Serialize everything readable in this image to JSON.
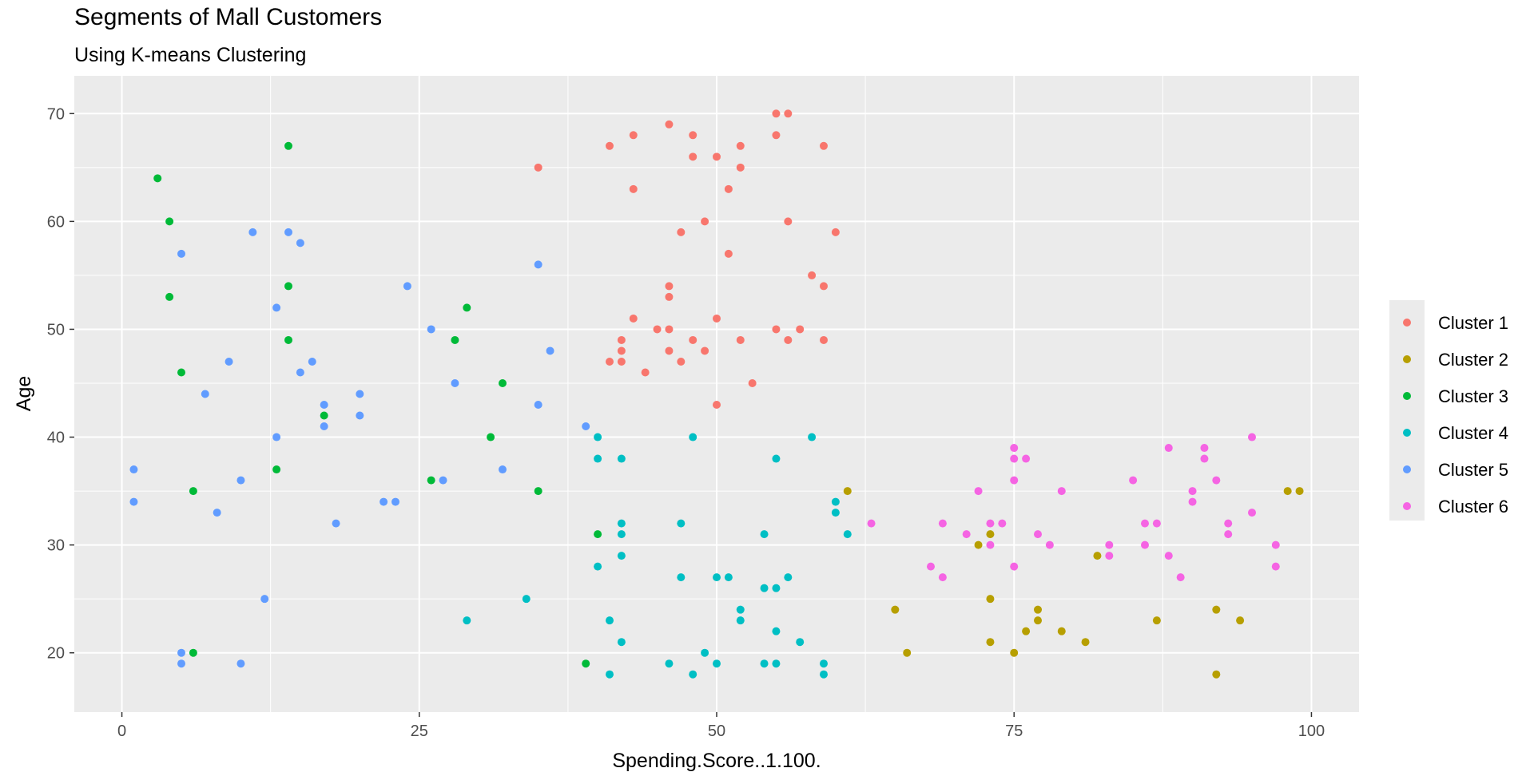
{
  "chart_data": {
    "type": "scatter",
    "title": "Segments of Mall Customers",
    "subtitle": "Using K-means Clustering",
    "xlabel": "Spending.Score..1.100.",
    "ylabel": "Age",
    "xlim": [
      -4,
      104
    ],
    "ylim": [
      14.5,
      73.5
    ],
    "xticks": [
      0,
      25,
      50,
      75,
      100
    ],
    "yticks": [
      20,
      30,
      40,
      50,
      60,
      70
    ],
    "grid": true,
    "legend_position": "right",
    "series": [
      {
        "name": "Cluster 1",
        "color": "#F8766D",
        "points": [
          [
            35,
            65
          ],
          [
            41,
            67
          ],
          [
            43,
            68
          ],
          [
            43,
            63
          ],
          [
            46,
            69
          ],
          [
            48,
            68
          ],
          [
            48,
            66
          ],
          [
            50,
            66
          ],
          [
            52,
            67
          ],
          [
            51,
            63
          ],
          [
            52,
            65
          ],
          [
            55,
            70
          ],
          [
            56,
            70
          ],
          [
            55,
            68
          ],
          [
            59,
            67
          ],
          [
            47,
            59
          ],
          [
            49,
            60
          ],
          [
            51,
            57
          ],
          [
            56,
            60
          ],
          [
            60,
            59
          ],
          [
            58,
            55
          ],
          [
            59,
            54
          ],
          [
            46,
            54
          ],
          [
            46,
            53
          ],
          [
            42,
            49
          ],
          [
            42,
            48
          ],
          [
            43,
            51
          ],
          [
            45,
            50
          ],
          [
            46,
            50
          ],
          [
            46,
            48
          ],
          [
            48,
            49
          ],
          [
            49,
            48
          ],
          [
            50,
            51
          ],
          [
            52,
            49
          ],
          [
            55,
            50
          ],
          [
            56,
            49
          ],
          [
            57,
            50
          ],
          [
            59,
            49
          ],
          [
            41,
            47
          ],
          [
            42,
            47
          ],
          [
            44,
            46
          ],
          [
            47,
            47
          ],
          [
            53,
            45
          ],
          [
            50,
            43
          ]
        ]
      },
      {
        "name": "Cluster 2",
        "color": "#B79F00",
        "points": [
          [
            61,
            35
          ],
          [
            72,
            30
          ],
          [
            73,
            31
          ],
          [
            82,
            29
          ],
          [
            73,
            25
          ],
          [
            65,
            24
          ],
          [
            77,
            24
          ],
          [
            92,
            24
          ],
          [
            77,
            23
          ],
          [
            87,
            23
          ],
          [
            94,
            23
          ],
          [
            79,
            22
          ],
          [
            76,
            22
          ],
          [
            73,
            21
          ],
          [
            81,
            21
          ],
          [
            66,
            20
          ],
          [
            75,
            20
          ],
          [
            92,
            18
          ],
          [
            98,
            35
          ],
          [
            99,
            35
          ]
        ]
      },
      {
        "name": "Cluster 3",
        "color": "#00BA38",
        "points": [
          [
            14,
            67
          ],
          [
            3,
            64
          ],
          [
            4,
            60
          ],
          [
            14,
            54
          ],
          [
            4,
            53
          ],
          [
            29,
            52
          ],
          [
            14,
            49
          ],
          [
            28,
            49
          ],
          [
            5,
            46
          ],
          [
            32,
            45
          ],
          [
            17,
            42
          ],
          [
            31,
            40
          ],
          [
            13,
            37
          ],
          [
            26,
            36
          ],
          [
            6,
            35
          ],
          [
            35,
            35
          ],
          [
            40,
            31
          ],
          [
            6,
            20
          ],
          [
            39,
            19
          ]
        ]
      },
      {
        "name": "Cluster 4",
        "color": "#00BFC4",
        "points": [
          [
            40,
            40
          ],
          [
            48,
            40
          ],
          [
            58,
            40
          ],
          [
            40,
            38
          ],
          [
            42,
            38
          ],
          [
            55,
            38
          ],
          [
            60,
            34
          ],
          [
            60,
            33
          ],
          [
            61,
            31
          ],
          [
            42,
            32
          ],
          [
            42,
            31
          ],
          [
            47,
            32
          ],
          [
            54,
            31
          ],
          [
            40,
            28
          ],
          [
            42,
            29
          ],
          [
            47,
            27
          ],
          [
            50,
            27
          ],
          [
            51,
            27
          ],
          [
            56,
            27
          ],
          [
            54,
            26
          ],
          [
            55,
            26
          ],
          [
            52,
            24
          ],
          [
            52,
            23
          ],
          [
            34,
            25
          ],
          [
            29,
            23
          ],
          [
            41,
            23
          ],
          [
            42,
            21
          ],
          [
            55,
            22
          ],
          [
            57,
            21
          ],
          [
            49,
            20
          ],
          [
            46,
            19
          ],
          [
            50,
            19
          ],
          [
            54,
            19
          ],
          [
            55,
            19
          ],
          [
            59,
            19
          ],
          [
            41,
            18
          ],
          [
            48,
            18
          ],
          [
            59,
            18
          ]
        ]
      },
      {
        "name": "Cluster 5",
        "color": "#619CFF",
        "points": [
          [
            11,
            59
          ],
          [
            14,
            59
          ],
          [
            15,
            58
          ],
          [
            5,
            57
          ],
          [
            35,
            56
          ],
          [
            24,
            54
          ],
          [
            13,
            52
          ],
          [
            26,
            50
          ],
          [
            36,
            48
          ],
          [
            9,
            47
          ],
          [
            16,
            47
          ],
          [
            15,
            46
          ],
          [
            28,
            45
          ],
          [
            7,
            44
          ],
          [
            20,
            44
          ],
          [
            17,
            43
          ],
          [
            35,
            43
          ],
          [
            20,
            42
          ],
          [
            17,
            41
          ],
          [
            39,
            41
          ],
          [
            13,
            40
          ],
          [
            1,
            37
          ],
          [
            32,
            37
          ],
          [
            10,
            36
          ],
          [
            27,
            36
          ],
          [
            1,
            34
          ],
          [
            22,
            34
          ],
          [
            23,
            34
          ],
          [
            8,
            33
          ],
          [
            18,
            32
          ],
          [
            12,
            25
          ],
          [
            5,
            20
          ],
          [
            5,
            19
          ],
          [
            10,
            19
          ]
        ]
      },
      {
        "name": "Cluster 6",
        "color": "#F564E3",
        "points": [
          [
            95,
            40
          ],
          [
            75,
            39
          ],
          [
            88,
            39
          ],
          [
            91,
            39
          ],
          [
            75,
            38
          ],
          [
            76,
            38
          ],
          [
            91,
            38
          ],
          [
            75,
            36
          ],
          [
            85,
            36
          ],
          [
            92,
            36
          ],
          [
            72,
            35
          ],
          [
            79,
            35
          ],
          [
            90,
            35
          ],
          [
            90,
            34
          ],
          [
            95,
            33
          ],
          [
            63,
            32
          ],
          [
            69,
            32
          ],
          [
            73,
            32
          ],
          [
            74,
            32
          ],
          [
            86,
            32
          ],
          [
            87,
            32
          ],
          [
            93,
            32
          ],
          [
            71,
            31
          ],
          [
            77,
            31
          ],
          [
            93,
            31
          ],
          [
            73,
            30
          ],
          [
            78,
            30
          ],
          [
            83,
            30
          ],
          [
            86,
            30
          ],
          [
            97,
            30
          ],
          [
            83,
            29
          ],
          [
            88,
            29
          ],
          [
            68,
            28
          ],
          [
            75,
            28
          ],
          [
            97,
            28
          ],
          [
            69,
            27
          ],
          [
            89,
            27
          ]
        ]
      }
    ]
  }
}
